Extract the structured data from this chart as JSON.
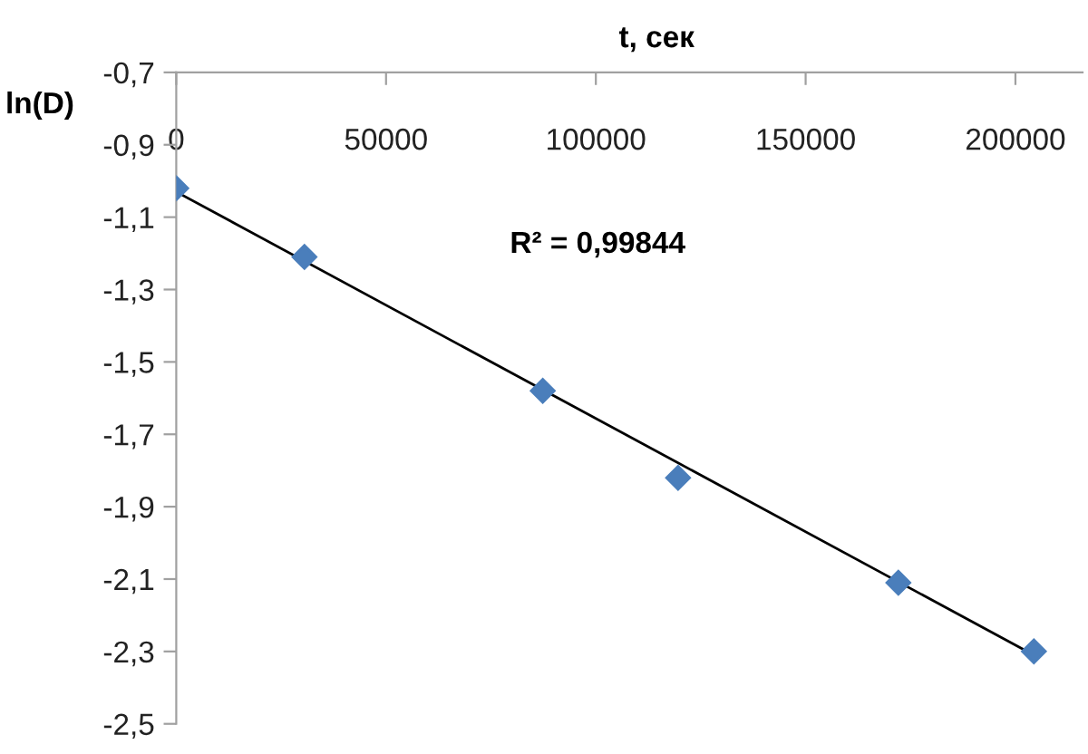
{
  "chart_data": {
    "type": "scatter",
    "xlabel": "t, сек",
    "ylabel": "ln(D)",
    "annotations": [
      "R² = 0,99844"
    ],
    "xlim": [
      0,
      216000
    ],
    "xticks": [
      0,
      50000,
      100000,
      150000,
      200000
    ],
    "ylim": [
      -2.5,
      -0.7
    ],
    "yticks": [
      {
        "value": -0.7,
        "label": "-0,7"
      },
      {
        "value": -0.9,
        "label": "-0,9"
      },
      {
        "value": -1.1,
        "label": "-1,1"
      },
      {
        "value": -1.3,
        "label": "-1,3"
      },
      {
        "value": -1.5,
        "label": "-1,5"
      },
      {
        "value": -1.7,
        "label": "-1,7"
      },
      {
        "value": -1.9,
        "label": "-1,9"
      },
      {
        "value": -2.1,
        "label": "-2,1"
      },
      {
        "value": -2.3,
        "label": "-2,3"
      },
      {
        "value": -2.5,
        "label": "-2,5"
      }
    ],
    "marker": "diamond",
    "grid": false,
    "legend": false,
    "series": [
      {
        "color": "#4a7ebb",
        "x": [
          0,
          30550,
          87350,
          119600,
          172100,
          204400
        ],
        "values": [
          -1.02,
          -1.21,
          -1.58,
          -1.82,
          -2.11,
          -2.3
        ]
      },
      {
        "type": "line",
        "color": "#000000",
        "marker": "none",
        "x": [
          0,
          204400
        ],
        "values": [
          -1.03,
          -2.31
        ]
      }
    ]
  }
}
